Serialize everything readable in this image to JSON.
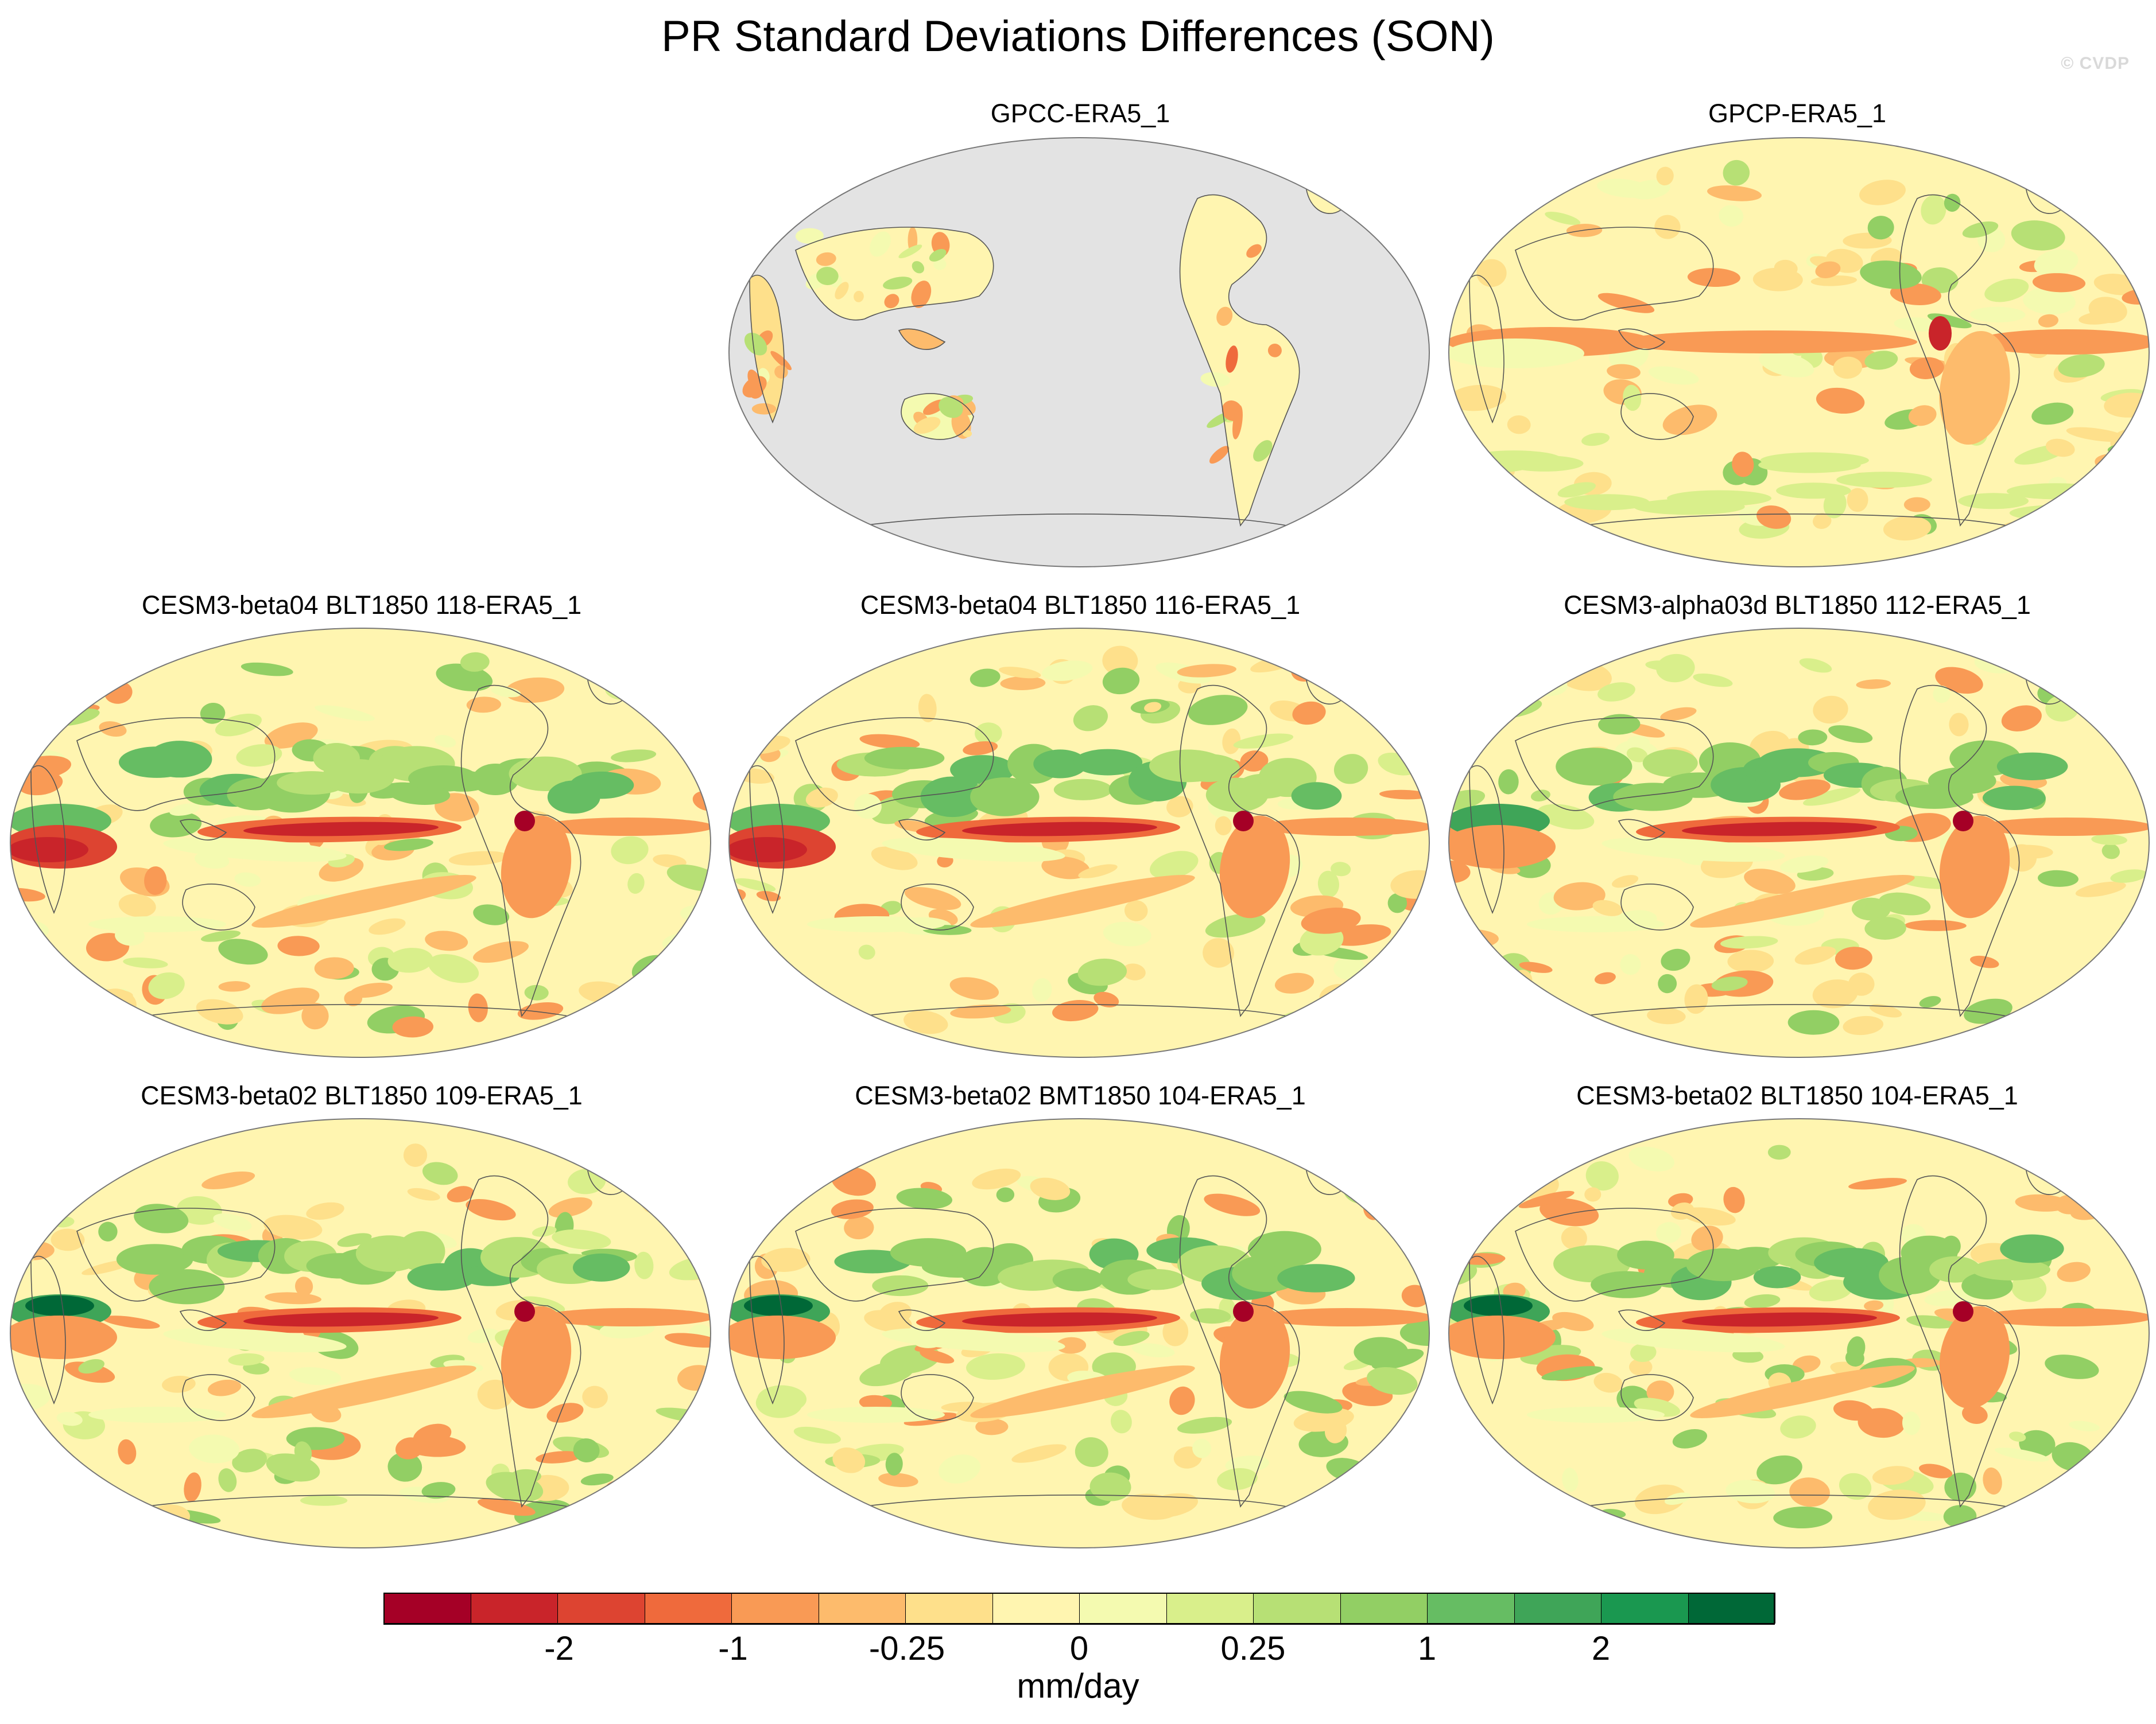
{
  "title": "PR Standard Deviations Differences (SON)",
  "watermark": "© CVDP",
  "panels": [
    {
      "label": "GPCC-ERA5_1",
      "kind": "land-only"
    },
    {
      "label": "GPCP-ERA5_1",
      "kind": "obs"
    },
    {
      "label": "CESM3-beta04 BLT1850 118-ERA5_1",
      "kind": "model"
    },
    {
      "label": "CESM3-beta04 BLT1850 116-ERA5_1",
      "kind": "model"
    },
    {
      "label": "CESM3-alpha03d BLT1850 112-ERA5_1",
      "kind": "model"
    },
    {
      "label": "CESM3-beta02 BLT1850 109-ERA5_1",
      "kind": "model"
    },
    {
      "label": "CESM3-beta02 BMT1850 104-ERA5_1",
      "kind": "model"
    },
    {
      "label": "CESM3-beta02 BLT1850 104-ERA5_1",
      "kind": "model"
    }
  ],
  "colorbar": {
    "units": "mm/day",
    "tick_labels": [
      "-2",
      "-1",
      "-0.25",
      "0",
      "0.25",
      "1",
      "2"
    ],
    "colors": [
      "#a50026",
      "#c9242a",
      "#dd4431",
      "#ef6a3c",
      "#f99a55",
      "#fdbb6c",
      "#fee08b",
      "#fff5b0",
      "#f4fab0",
      "#d9ef8b",
      "#b7e075",
      "#92cf64",
      "#66bd63",
      "#3fa558",
      "#1a9850",
      "#006837"
    ]
  },
  "map_colors": {
    "missing": "#e3e3e3",
    "coast": "#555555"
  }
}
